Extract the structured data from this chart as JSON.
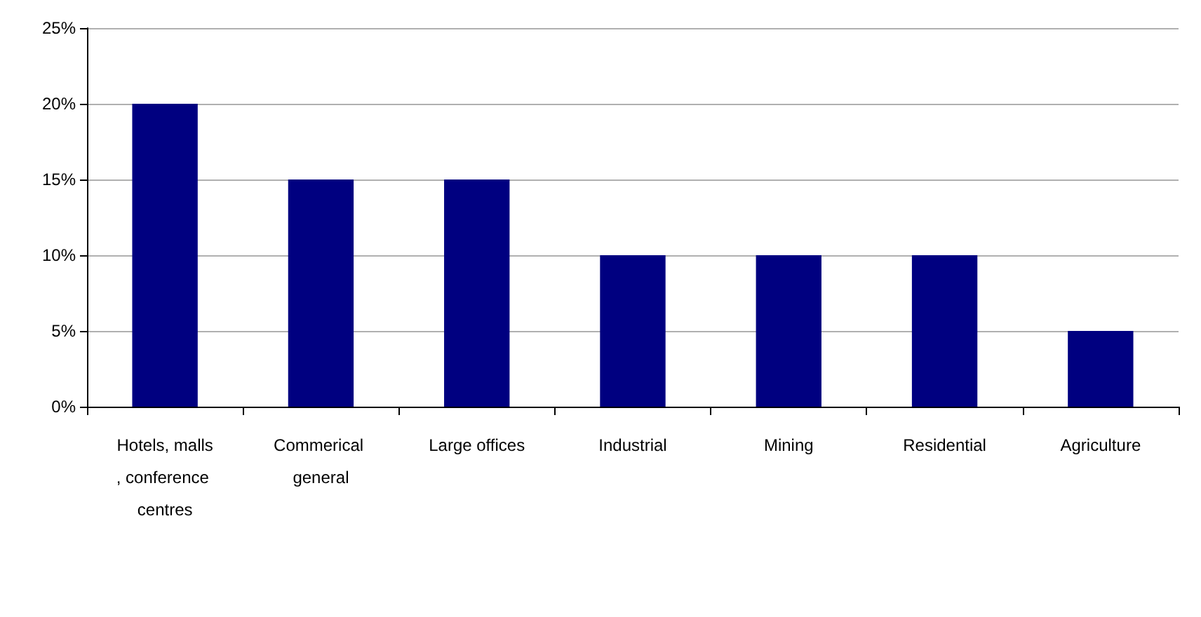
{
  "chart_data": {
    "type": "bar",
    "categories": [
      "Hotels, malls, conference centres",
      "Commerical general",
      "Large offices",
      "Industrial",
      "Mining",
      "Residential",
      "Agriculture"
    ],
    "values": [
      20,
      15,
      15,
      10,
      10,
      10,
      5
    ],
    "color": "#000080",
    "ylim": [
      0,
      25
    ],
    "yticks": [
      {
        "value": 0,
        "label": "0%"
      },
      {
        "value": 5,
        "label": "5%"
      },
      {
        "value": 10,
        "label": "10%"
      },
      {
        "value": 15,
        "label": "15%"
      },
      {
        "value": 20,
        "label": "20%"
      },
      {
        "value": 25,
        "label": "25%"
      }
    ],
    "grid": "y"
  }
}
